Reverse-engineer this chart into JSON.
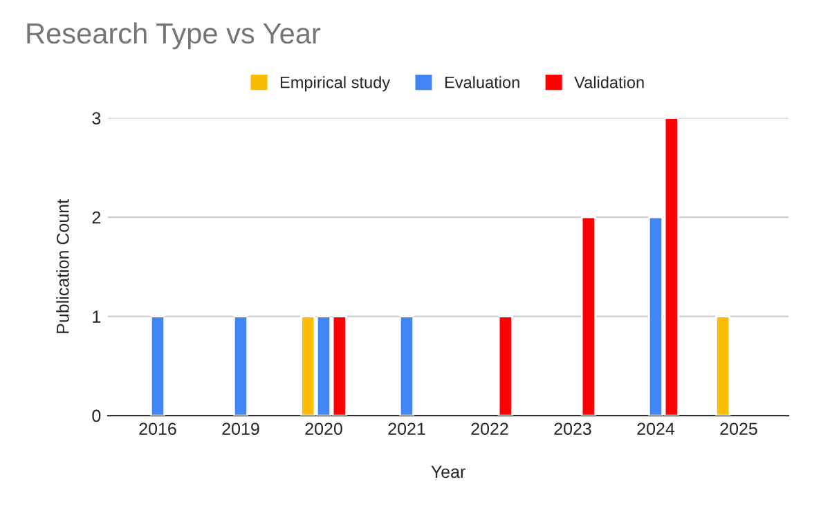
{
  "chart_data": {
    "type": "bar",
    "title": "Research Type vs Year",
    "xlabel": "Year",
    "ylabel": "Publication Count",
    "categories": [
      "2016",
      "2019",
      "2020",
      "2021",
      "2022",
      "2023",
      "2024",
      "2025"
    ],
    "series": [
      {
        "name": "Empirical study",
        "color": "#fbbc04",
        "values": [
          null,
          null,
          1,
          null,
          null,
          null,
          null,
          1
        ]
      },
      {
        "name": "Evaluation",
        "color": "#4285f4",
        "values": [
          1,
          1,
          1,
          1,
          null,
          null,
          2,
          null
        ]
      },
      {
        "name": "Validation",
        "color": "#ff0000",
        "values": [
          null,
          null,
          1,
          null,
          1,
          2,
          3,
          null
        ]
      }
    ],
    "ylim": [
      0,
      3
    ],
    "yticks": [
      0,
      1,
      2,
      3
    ],
    "grid": "y",
    "legend": "top"
  }
}
